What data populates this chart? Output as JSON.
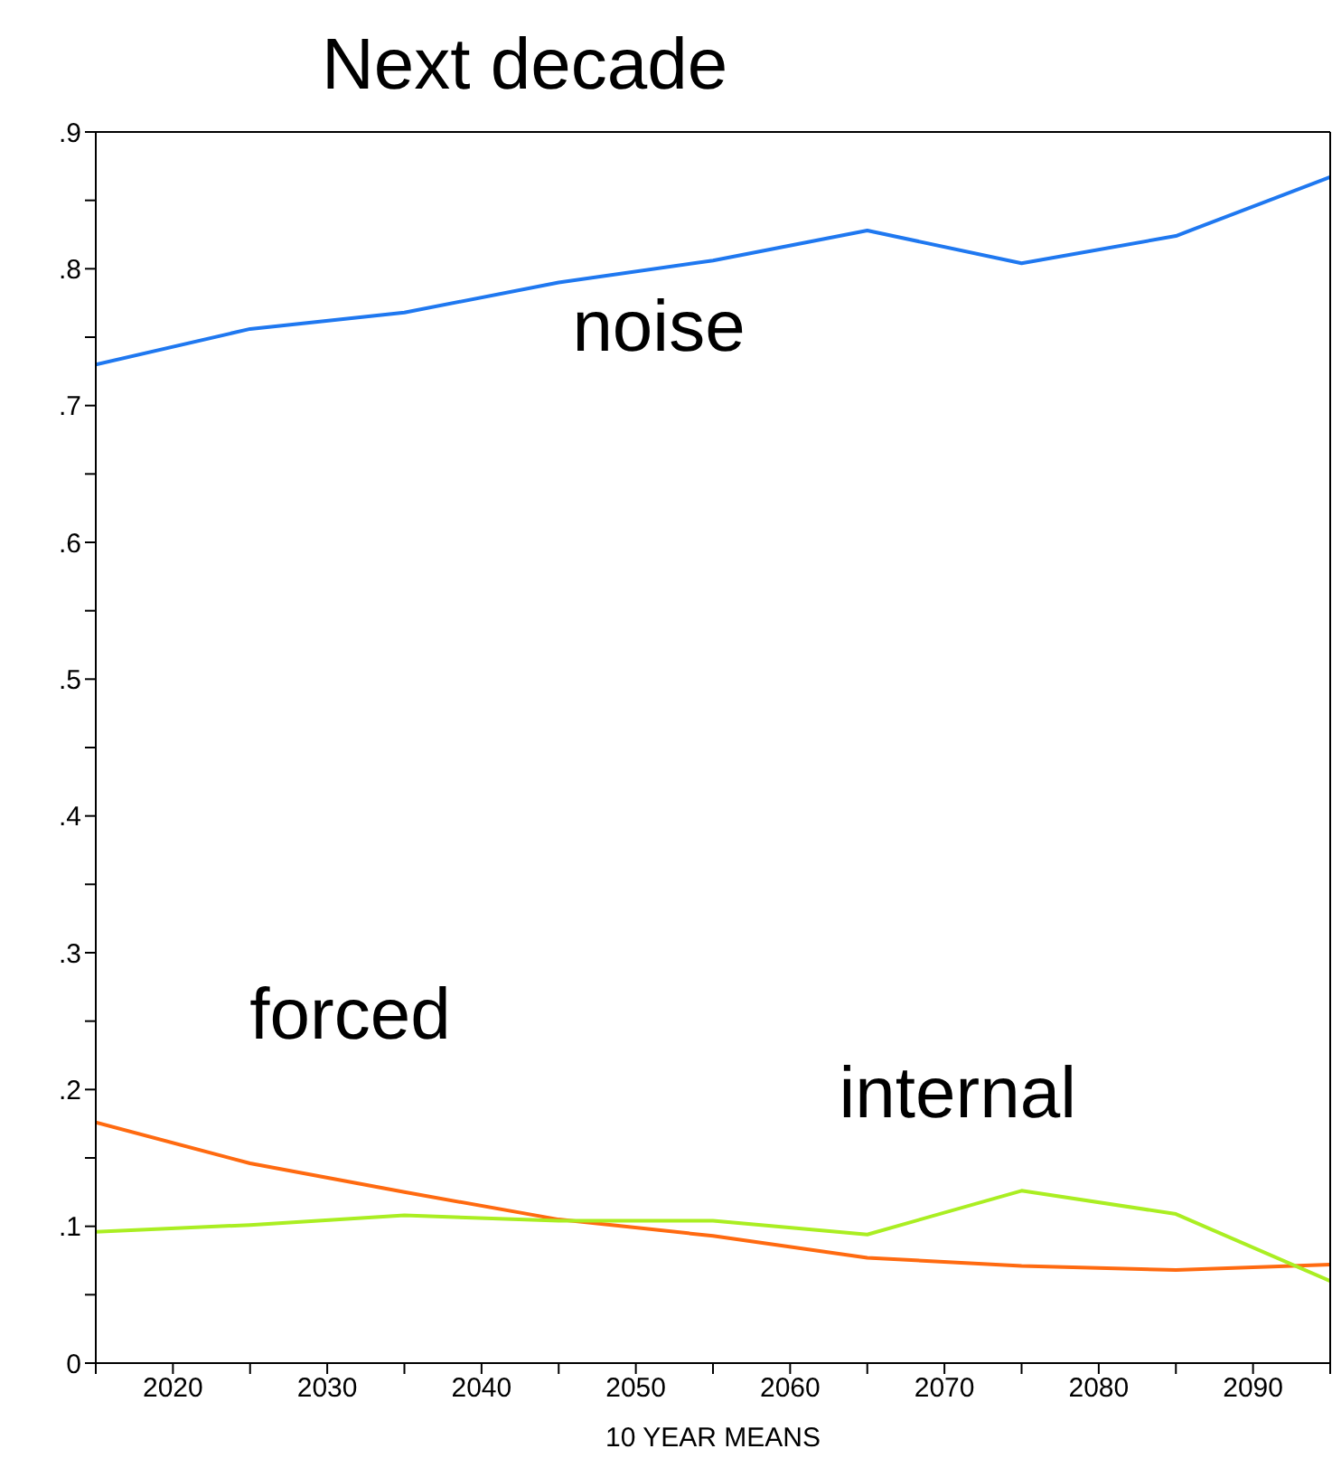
{
  "chart_data": {
    "type": "line",
    "title": "Next decade",
    "xlabel": "10 YEAR MEANS",
    "x": [
      2015,
      2025,
      2035,
      2045,
      2055,
      2065,
      2075,
      2085,
      2095
    ],
    "series": [
      {
        "name": "noise",
        "color": "#1f78f0",
        "values": [
          0.73,
          0.756,
          0.768,
          0.79,
          0.806,
          0.828,
          0.804,
          0.824,
          0.867
        ]
      },
      {
        "name": "forced",
        "color": "#ff6a10",
        "values": [
          0.176,
          0.146,
          0.125,
          0.105,
          0.093,
          0.077,
          0.071,
          0.068,
          0.072
        ]
      },
      {
        "name": "internal",
        "color": "#aaee22",
        "values": [
          0.096,
          0.101,
          0.108,
          0.104,
          0.104,
          0.094,
          0.126,
          0.109,
          0.06
        ]
      }
    ],
    "xlim": [
      2015,
      2095
    ],
    "xticks": [
      {
        "value": 2015,
        "label": null
      },
      2020,
      {
        "value": 2025,
        "label": null
      },
      2030,
      {
        "value": 2035,
        "label": null
      },
      2040,
      {
        "value": 2045,
        "label": null
      },
      2050,
      {
        "value": 2055,
        "label": null
      },
      2060,
      {
        "value": 2065,
        "label": null
      },
      2070,
      {
        "value": 2075,
        "label": null
      },
      2080,
      {
        "value": 2085,
        "label": null
      },
      2090,
      {
        "value": 2095,
        "label": null
      }
    ],
    "ylim": [
      0,
      0.9
    ],
    "yticks": [
      0,
      {
        "value": 0.05,
        "label": null
      },
      {
        "value": 0.1,
        "label": ".1"
      },
      {
        "value": 0.15,
        "label": null
      },
      {
        "value": 0.2,
        "label": ".2"
      },
      {
        "value": 0.25,
        "label": null
      },
      {
        "value": 0.3,
        "label": ".3"
      },
      {
        "value": 0.35,
        "label": null
      },
      {
        "value": 0.4,
        "label": ".4"
      },
      {
        "value": 0.45,
        "label": null
      },
      {
        "value": 0.5,
        "label": ".5"
      },
      {
        "value": 0.55,
        "label": null
      },
      {
        "value": 0.6,
        "label": ".6"
      },
      {
        "value": 0.65,
        "label": null
      },
      {
        "value": 0.7,
        "label": ".7"
      },
      {
        "value": 0.75,
        "label": null
      },
      {
        "value": 0.8,
        "label": ".8"
      },
      {
        "value": 0.85,
        "label": null
      },
      {
        "value": 0.9,
        "label": ".9"
      }
    ],
    "grid": false,
    "legend": false,
    "marker": "none",
    "line_style": "solid"
  }
}
